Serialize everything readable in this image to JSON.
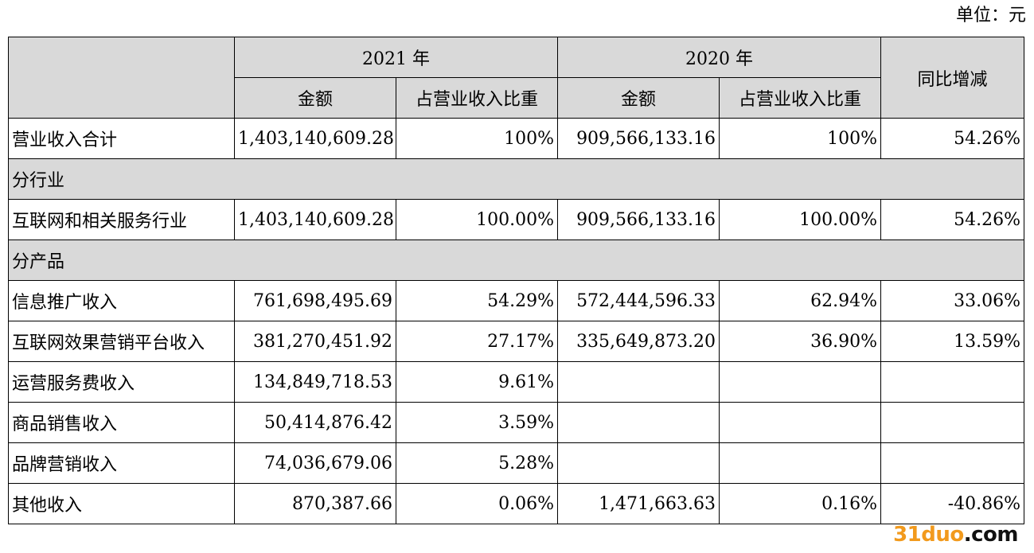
{
  "unit_label": "单位：元",
  "header": {
    "year1": "2021 年",
    "year2": "2020 年",
    "yoy": "同比增减",
    "amount1": "金额",
    "share1": "占营业收入比重",
    "amount2": "金额",
    "share2": "占营业收入比重"
  },
  "total_row": {
    "label": "营业收入合计",
    "amount_2021": "1,403,140,609.28",
    "share_2021": "100%",
    "amount_2020": "909,566,133.16",
    "share_2020": "100%",
    "yoy": "54.26%"
  },
  "sections": {
    "industry": "分行业",
    "product": "分产品"
  },
  "industry_rows": [
    {
      "label": "互联网和相关服务行业",
      "amount_2021": "1,403,140,609.28",
      "share_2021": "100.00%",
      "amount_2020": "909,566,133.16",
      "share_2020": "100.00%",
      "yoy": "54.26%"
    }
  ],
  "product_rows": [
    {
      "label": "信息推广收入",
      "amount_2021": "761,698,495.69",
      "share_2021": "54.29%",
      "amount_2020": "572,444,596.33",
      "share_2020": "62.94%",
      "yoy": "33.06%"
    },
    {
      "label": "互联网效果营销平台收入",
      "amount_2021": "381,270,451.92",
      "share_2021": "27.17%",
      "amount_2020": "335,649,873.20",
      "share_2020": "36.90%",
      "yoy": "13.59%"
    },
    {
      "label": "运营服务费收入",
      "amount_2021": "134,849,718.53",
      "share_2021": "9.61%",
      "amount_2020": "",
      "share_2020": "",
      "yoy": ""
    },
    {
      "label": "商品销售收入",
      "amount_2021": "50,414,876.42",
      "share_2021": "3.59%",
      "amount_2020": "",
      "share_2020": "",
      "yoy": ""
    },
    {
      "label": "品牌营销收入",
      "amount_2021": "74,036,679.06",
      "share_2021": "5.28%",
      "amount_2020": "",
      "share_2020": "",
      "yoy": ""
    },
    {
      "label": "其他收入",
      "amount_2021": "870,387.66",
      "share_2021": "0.06%",
      "amount_2020": "1,471,663.63",
      "share_2020": "0.16%",
      "yoy": "-40.86%"
    }
  ],
  "watermark": {
    "part1": "31duo",
    "part2": ".com"
  },
  "colors": {
    "header_bg": "#d9d9d9",
    "watermark_accent": "#f29a1d"
  }
}
